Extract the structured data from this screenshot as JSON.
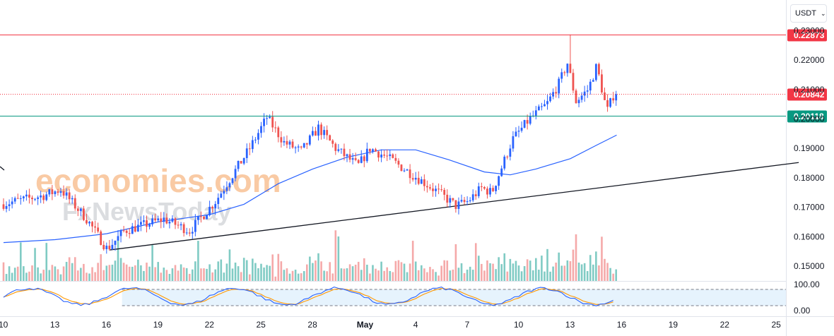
{
  "header": {
    "currency": "USDT"
  },
  "watermark": {
    "line1": "economies.com",
    "line2": "FxNewsToday"
  },
  "colors": {
    "up": "#2962ff",
    "down": "#ef5350",
    "vol_up": "#80cbc4",
    "vol_down": "#f5a9a9",
    "ma": "#2962ff",
    "stoch_k": "#2962ff",
    "stoch_d": "#ff9800",
    "resistance": "#f23645",
    "support": "#089981"
  },
  "chart_data": {
    "type": "candlestick",
    "price_axis": {
      "ticks": [
        0.15,
        0.16,
        0.17,
        0.18,
        0.19,
        0.2,
        0.21,
        0.22,
        0.23
      ],
      "labels": [
        "0.15000",
        "0.16000",
        "0.17000",
        "0.18000",
        "0.19000",
        "0.20000",
        "0.21000",
        "0.22000",
        "0.23000"
      ]
    },
    "time_axis": {
      "labels": [
        "10",
        "13",
        "16",
        "19",
        "22",
        "25",
        "28",
        "May",
        "4",
        "7",
        "10",
        "13",
        "16",
        "19",
        "22",
        "25"
      ],
      "start_date": "2024-04-10",
      "step_days": 3
    },
    "levels": [
      {
        "label": "0.22873",
        "value": 0.22873,
        "style": "solid",
        "color": "#f23645"
      },
      {
        "label": "0.20842",
        "value": 0.20842,
        "style": "dotted",
        "color": "#f23645"
      },
      {
        "label": "0.20118",
        "value": 0.20118,
        "style": "solid",
        "color": "#089981"
      }
    ],
    "trendline": {
      "from": {
        "day": 6.2,
        "price": 0.1555
      },
      "to": {
        "day": 46.3,
        "price": 0.1852
      }
    },
    "anchors": [
      {
        "day": 0,
        "price": 0.171
      },
      {
        "day": 2.5,
        "price": 0.174
      },
      {
        "day": 3.5,
        "price": 0.176
      },
      {
        "day": 5.0,
        "price": 0.166
      },
      {
        "day": 6.2,
        "price": 0.1558
      },
      {
        "day": 7.2,
        "price": 0.162
      },
      {
        "day": 9.5,
        "price": 0.166
      },
      {
        "day": 11.0,
        "price": 0.162
      },
      {
        "day": 12.5,
        "price": 0.172
      },
      {
        "day": 13.5,
        "price": 0.181
      },
      {
        "day": 14.5,
        "price": 0.19
      },
      {
        "day": 15.5,
        "price": 0.2005
      },
      {
        "day": 16.5,
        "price": 0.192
      },
      {
        "day": 17.5,
        "price": 0.189
      },
      {
        "day": 18.5,
        "price": 0.197
      },
      {
        "day": 19.5,
        "price": 0.19
      },
      {
        "day": 20.8,
        "price": 0.184
      },
      {
        "day": 21.5,
        "price": 0.19
      },
      {
        "day": 22.5,
        "price": 0.187
      },
      {
        "day": 24.0,
        "price": 0.181
      },
      {
        "day": 25.5,
        "price": 0.175
      },
      {
        "day": 26.5,
        "price": 0.1705
      },
      {
        "day": 27.2,
        "price": 0.172
      },
      {
        "day": 28.0,
        "price": 0.1765
      },
      {
        "day": 28.6,
        "price": 0.175
      },
      {
        "day": 29.2,
        "price": 0.184
      },
      {
        "day": 29.8,
        "price": 0.193
      },
      {
        "day": 30.8,
        "price": 0.2
      },
      {
        "day": 31.8,
        "price": 0.205
      },
      {
        "day": 32.5,
        "price": 0.212
      },
      {
        "day": 33.0,
        "price": 0.219
      },
      {
        "day": 33.5,
        "price": 0.206
      },
      {
        "day": 34.2,
        "price": 0.21
      },
      {
        "day": 34.7,
        "price": 0.218
      },
      {
        "day": 35.3,
        "price": 0.2025
      },
      {
        "day": 35.7,
        "price": 0.2084
      }
    ],
    "moving_average": [
      {
        "day": 0,
        "price": 0.158
      },
      {
        "day": 3,
        "price": 0.159
      },
      {
        "day": 6,
        "price": 0.161
      },
      {
        "day": 9,
        "price": 0.165
      },
      {
        "day": 12,
        "price": 0.1675
      },
      {
        "day": 14,
        "price": 0.171
      },
      {
        "day": 16,
        "price": 0.178
      },
      {
        "day": 18,
        "price": 0.183
      },
      {
        "day": 20,
        "price": 0.187
      },
      {
        "day": 22,
        "price": 0.1895
      },
      {
        "day": 24,
        "price": 0.1895
      },
      {
        "day": 26,
        "price": 0.186
      },
      {
        "day": 28,
        "price": 0.182
      },
      {
        "day": 29.5,
        "price": 0.181
      },
      {
        "day": 31,
        "price": 0.183
      },
      {
        "day": 33,
        "price": 0.1865
      },
      {
        "day": 34.5,
        "price": 0.191
      },
      {
        "day": 35.7,
        "price": 0.1945
      }
    ],
    "stochastic": {
      "labels": [
        "100.00",
        "0.00"
      ],
      "upper": 80,
      "lower": 20
    }
  }
}
